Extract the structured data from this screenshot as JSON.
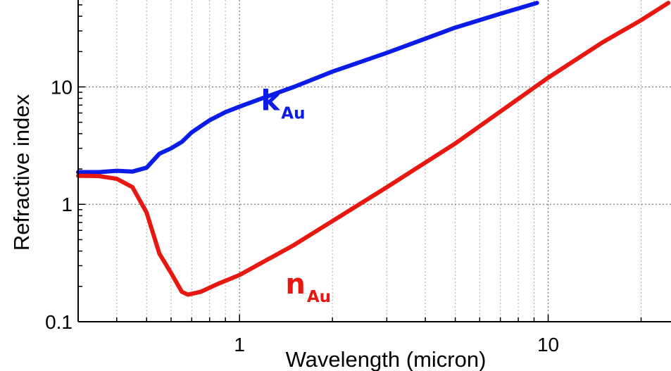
{
  "chart_data": {
    "type": "line",
    "title": "",
    "xlabel": "Wavelength (micron)",
    "ylabel": "Refractive index",
    "xscale": "log",
    "yscale": "log",
    "xlim": [
      0.3,
      25
    ],
    "ylim": [
      0.1,
      55
    ],
    "grid": true,
    "x_tick_labels": [
      {
        "value": 1,
        "label": "1"
      },
      {
        "value": 10,
        "label": "10"
      }
    ],
    "y_tick_labels": [
      {
        "value": 0.1,
        "label": "0.1"
      },
      {
        "value": 1,
        "label": "1"
      },
      {
        "value": 10,
        "label": "10"
      }
    ],
    "series": [
      {
        "name": "k",
        "name_subscript": "Au",
        "color": "#0b1be8",
        "x": [
          0.3,
          0.35,
          0.4,
          0.45,
          0.5,
          0.55,
          0.6,
          0.65,
          0.7,
          0.8,
          0.9,
          1.0,
          1.2,
          1.5,
          2,
          3,
          5,
          7,
          9.2
        ],
        "y": [
          1.88,
          1.88,
          1.93,
          1.9,
          2.05,
          2.7,
          3.0,
          3.4,
          4.1,
          5.2,
          6.1,
          6.8,
          8.1,
          10.0,
          13.5,
          19.5,
          32,
          42,
          52
        ]
      },
      {
        "name": "n",
        "name_subscript": "Au",
        "color": "#e8170f",
        "x": [
          0.3,
          0.35,
          0.4,
          0.45,
          0.5,
          0.55,
          0.6,
          0.65,
          0.68,
          0.75,
          0.85,
          1.0,
          1.5,
          2,
          3,
          5,
          10,
          15,
          20,
          24.5
        ],
        "y": [
          1.75,
          1.74,
          1.65,
          1.4,
          0.85,
          0.38,
          0.26,
          0.18,
          0.17,
          0.18,
          0.21,
          0.25,
          0.45,
          0.72,
          1.4,
          3.3,
          12,
          24,
          37,
          52
        ]
      }
    ]
  }
}
